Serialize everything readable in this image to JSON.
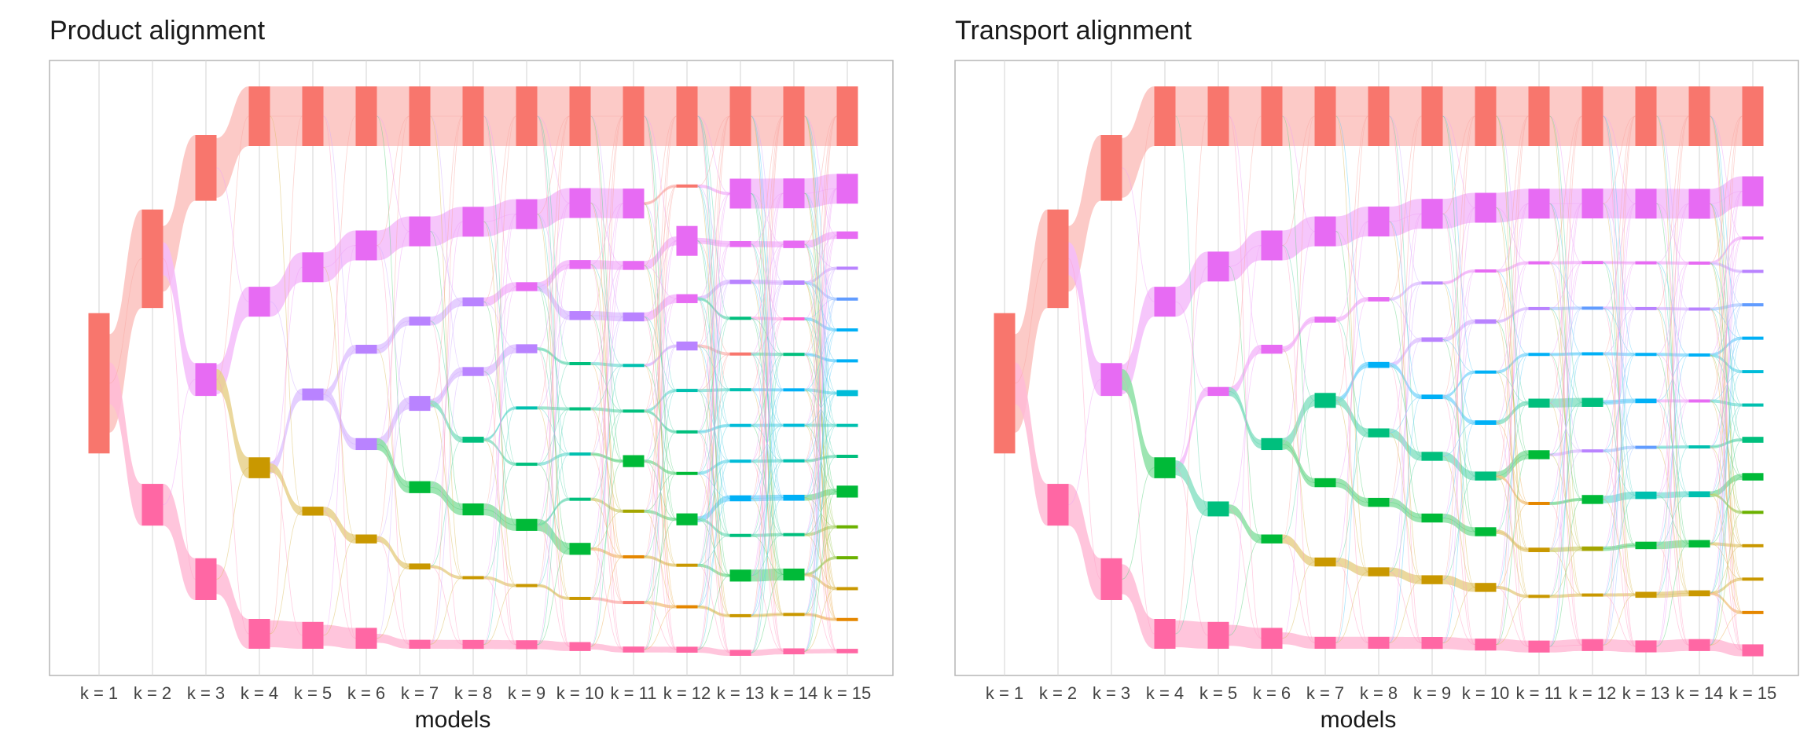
{
  "chart_data": [
    {
      "type": "sankey",
      "title": "Product alignment",
      "xlabel": "models",
      "categories": [
        "k = 1",
        "k = 2",
        "k = 3",
        "k = 4",
        "k = 5",
        "k = 6",
        "k = 7",
        "k = 8",
        "k = 9",
        "k = 10",
        "k = 11",
        "k = 12",
        "k = 13",
        "k = 14",
        "k = 15"
      ],
      "grid": true,
      "palette": [
        "#F8766D",
        "#E58700",
        "#C99800",
        "#A3A500",
        "#6BB100",
        "#00BA38",
        "#00BF7D",
        "#00C0AF",
        "#00BCD8",
        "#00B0F6",
        "#619CFF",
        "#B983FF",
        "#E76BF3",
        "#FD61D1",
        "#FF67A4"
      ],
      "clusters": [
        [
          [
            0,
            0.47
          ]
        ],
        [
          [
            0,
            0.33
          ],
          [
            14,
            0.14
          ]
        ],
        [
          [
            0,
            0.22
          ],
          [
            12,
            0.11
          ],
          [
            14,
            0.14
          ]
        ],
        [
          [
            0,
            0.2
          ],
          [
            12,
            0.1
          ],
          [
            2,
            0.07
          ],
          [
            14,
            0.1
          ]
        ],
        [
          [
            0,
            0.2
          ],
          [
            12,
            0.1
          ],
          [
            11,
            0.04
          ],
          [
            2,
            0.03
          ],
          [
            14,
            0.09
          ]
        ],
        [
          [
            0,
            0.2
          ],
          [
            12,
            0.1
          ],
          [
            11,
            0.03
          ],
          [
            11,
            0.04
          ],
          [
            2,
            0.03
          ],
          [
            14,
            0.07
          ]
        ],
        [
          [
            0,
            0.2
          ],
          [
            12,
            0.1
          ],
          [
            11,
            0.03
          ],
          [
            11,
            0.05
          ],
          [
            5,
            0.04
          ],
          [
            2,
            0.02
          ],
          [
            14,
            0.03
          ]
        ],
        [
          [
            0,
            0.2
          ],
          [
            12,
            0.1
          ],
          [
            11,
            0.03
          ],
          [
            11,
            0.03
          ],
          [
            6,
            0.02
          ],
          [
            5,
            0.04
          ],
          [
            2,
            0.01
          ],
          [
            14,
            0.03
          ]
        ],
        [
          [
            0,
            0.2
          ],
          [
            12,
            0.1
          ],
          [
            12,
            0.03
          ],
          [
            11,
            0.03
          ],
          [
            7,
            0.01
          ],
          [
            6,
            0.01
          ],
          [
            5,
            0.04
          ],
          [
            2,
            0.01
          ],
          [
            14,
            0.03
          ]
        ],
        [
          [
            0,
            0.2
          ],
          [
            12,
            0.1
          ],
          [
            12,
            0.03
          ],
          [
            11,
            0.03
          ],
          [
            6,
            0.005
          ],
          [
            6,
            0.01
          ],
          [
            7,
            0.01
          ],
          [
            6,
            0.01
          ],
          [
            5,
            0.04
          ],
          [
            2,
            0.01
          ],
          [
            14,
            0.03
          ]
        ],
        [
          [
            0,
            0.2
          ],
          [
            12,
            0.1
          ],
          [
            12,
            0.03
          ],
          [
            11,
            0.03
          ],
          [
            7,
            0.01
          ],
          [
            6,
            0.01
          ],
          [
            5,
            0.04
          ],
          [
            3,
            0.01
          ],
          [
            1,
            0.005
          ],
          [
            0,
            0.005
          ],
          [
            14,
            0.02
          ]
        ],
        [
          [
            0,
            0.2
          ],
          [
            0,
            0.01
          ],
          [
            12,
            0.1
          ],
          [
            12,
            0.03
          ],
          [
            11,
            0.03
          ],
          [
            7,
            0.01
          ],
          [
            6,
            0.01
          ],
          [
            5,
            0.005
          ],
          [
            5,
            0.04
          ],
          [
            2,
            0.01
          ],
          [
            1,
            0.005
          ],
          [
            14,
            0.02
          ]
        ],
        [
          [
            0,
            0.2
          ],
          [
            12,
            0.1
          ],
          [
            12,
            0.02
          ],
          [
            11,
            0.015
          ],
          [
            6,
            0.005
          ],
          [
            0,
            0.005
          ],
          [
            7,
            0.01
          ],
          [
            8,
            0.01
          ],
          [
            8,
            0.005
          ],
          [
            9,
            0.02
          ],
          [
            6,
            0.005
          ],
          [
            5,
            0.04
          ],
          [
            2,
            0.01
          ],
          [
            14,
            0.02
          ]
        ],
        [
          [
            0,
            0.2
          ],
          [
            12,
            0.1
          ],
          [
            12,
            0.025
          ],
          [
            11,
            0.015
          ],
          [
            13,
            0.01
          ],
          [
            6,
            0.005
          ],
          [
            9,
            0.01
          ],
          [
            8,
            0.005
          ],
          [
            7,
            0.005
          ],
          [
            9,
            0.02
          ],
          [
            6,
            0.01
          ],
          [
            5,
            0.04
          ],
          [
            2,
            0.01
          ],
          [
            14,
            0.02
          ]
        ],
        [
          [
            0,
            0.2
          ],
          [
            12,
            0.1
          ],
          [
            12,
            0.025
          ],
          [
            11,
            0.01
          ],
          [
            10,
            0.01
          ],
          [
            9,
            0.01
          ],
          [
            9,
            0.01
          ],
          [
            8,
            0.02
          ],
          [
            7,
            0.01
          ],
          [
            6,
            0.01
          ],
          [
            5,
            0.04
          ],
          [
            4,
            0.005
          ],
          [
            4,
            0.005
          ],
          [
            2,
            0.01
          ],
          [
            1,
            0.01
          ],
          [
            14,
            0.015
          ]
        ]
      ]
    },
    {
      "type": "sankey",
      "title": "Transport alignment",
      "xlabel": "models",
      "categories": [
        "k = 1",
        "k = 2",
        "k = 3",
        "k = 4",
        "k = 5",
        "k = 6",
        "k = 7",
        "k = 8",
        "k = 9",
        "k = 10",
        "k = 11",
        "k = 12",
        "k = 13",
        "k = 14",
        "k = 15"
      ],
      "grid": true,
      "palette": [
        "#F8766D",
        "#E58700",
        "#C99800",
        "#A3A500",
        "#6BB100",
        "#00BA38",
        "#00BF7D",
        "#00C0AF",
        "#00BCD8",
        "#00B0F6",
        "#619CFF",
        "#B983FF",
        "#E76BF3",
        "#FD61D1",
        "#FF67A4"
      ],
      "clusters": [
        [
          [
            0,
            0.47
          ]
        ],
        [
          [
            0,
            0.33
          ],
          [
            14,
            0.14
          ]
        ],
        [
          [
            0,
            0.22
          ],
          [
            12,
            0.11
          ],
          [
            14,
            0.14
          ]
        ],
        [
          [
            0,
            0.2
          ],
          [
            12,
            0.1
          ],
          [
            5,
            0.07
          ],
          [
            14,
            0.1
          ]
        ],
        [
          [
            0,
            0.2
          ],
          [
            12,
            0.1
          ],
          [
            12,
            0.03
          ],
          [
            6,
            0.05
          ],
          [
            14,
            0.09
          ]
        ],
        [
          [
            0,
            0.2
          ],
          [
            12,
            0.1
          ],
          [
            12,
            0.03
          ],
          [
            6,
            0.04
          ],
          [
            5,
            0.03
          ],
          [
            14,
            0.07
          ]
        ],
        [
          [
            0,
            0.2
          ],
          [
            12,
            0.1
          ],
          [
            12,
            0.02
          ],
          [
            6,
            0.05
          ],
          [
            5,
            0.03
          ],
          [
            2,
            0.03
          ],
          [
            14,
            0.04
          ]
        ],
        [
          [
            0,
            0.2
          ],
          [
            12,
            0.1
          ],
          [
            12,
            0.015
          ],
          [
            9,
            0.02
          ],
          [
            6,
            0.03
          ],
          [
            5,
            0.03
          ],
          [
            2,
            0.03
          ],
          [
            14,
            0.04
          ]
        ],
        [
          [
            0,
            0.2
          ],
          [
            12,
            0.1
          ],
          [
            11,
            0.01
          ],
          [
            11,
            0.015
          ],
          [
            9,
            0.015
          ],
          [
            6,
            0.03
          ],
          [
            5,
            0.03
          ],
          [
            2,
            0.03
          ],
          [
            14,
            0.04
          ]
        ],
        [
          [
            0,
            0.2
          ],
          [
            12,
            0.1
          ],
          [
            12,
            0.01
          ],
          [
            11,
            0.015
          ],
          [
            9,
            0.005
          ],
          [
            9,
            0.015
          ],
          [
            6,
            0.03
          ],
          [
            5,
            0.03
          ],
          [
            2,
            0.03
          ],
          [
            14,
            0.04
          ]
        ],
        [
          [
            0,
            0.2
          ],
          [
            12,
            0.1
          ],
          [
            12,
            0.01
          ],
          [
            11,
            0.01
          ],
          [
            9,
            0.01
          ],
          [
            6,
            0.03
          ],
          [
            5,
            0.03
          ],
          [
            1,
            0.005
          ],
          [
            2,
            0.015
          ],
          [
            2,
            0.005
          ],
          [
            14,
            0.04
          ]
        ],
        [
          [
            0,
            0.2
          ],
          [
            12,
            0.1
          ],
          [
            12,
            0.01
          ],
          [
            10,
            0.01
          ],
          [
            9,
            0.01
          ],
          [
            6,
            0.03
          ],
          [
            11,
            0.005
          ],
          [
            5,
            0.03
          ],
          [
            3,
            0.015
          ],
          [
            2,
            0.01
          ],
          [
            14,
            0.04
          ]
        ],
        [
          [
            0,
            0.2
          ],
          [
            12,
            0.1
          ],
          [
            12,
            0.01
          ],
          [
            11,
            0.01
          ],
          [
            9,
            0.005
          ],
          [
            9,
            0.015
          ],
          [
            10,
            0.005
          ],
          [
            7,
            0.025
          ],
          [
            5,
            0.025
          ],
          [
            2,
            0.02
          ],
          [
            14,
            0.04
          ]
        ],
        [
          [
            0,
            0.2
          ],
          [
            12,
            0.1
          ],
          [
            12,
            0.01
          ],
          [
            11,
            0.01
          ],
          [
            9,
            0.01
          ],
          [
            12,
            0.005
          ],
          [
            7,
            0.01
          ],
          [
            7,
            0.02
          ],
          [
            5,
            0.025
          ],
          [
            2,
            0.02
          ],
          [
            14,
            0.04
          ]
        ],
        [
          [
            0,
            0.2
          ],
          [
            12,
            0.1
          ],
          [
            12,
            0.01
          ],
          [
            11,
            0.01
          ],
          [
            10,
            0.01
          ],
          [
            9,
            0.01
          ],
          [
            8,
            0.005
          ],
          [
            7,
            0.01
          ],
          [
            6,
            0.02
          ],
          [
            5,
            0.025
          ],
          [
            4,
            0.005
          ],
          [
            2,
            0.01
          ],
          [
            2,
            0.005
          ],
          [
            1,
            0.005
          ],
          [
            14,
            0.04
          ]
        ]
      ]
    }
  ]
}
